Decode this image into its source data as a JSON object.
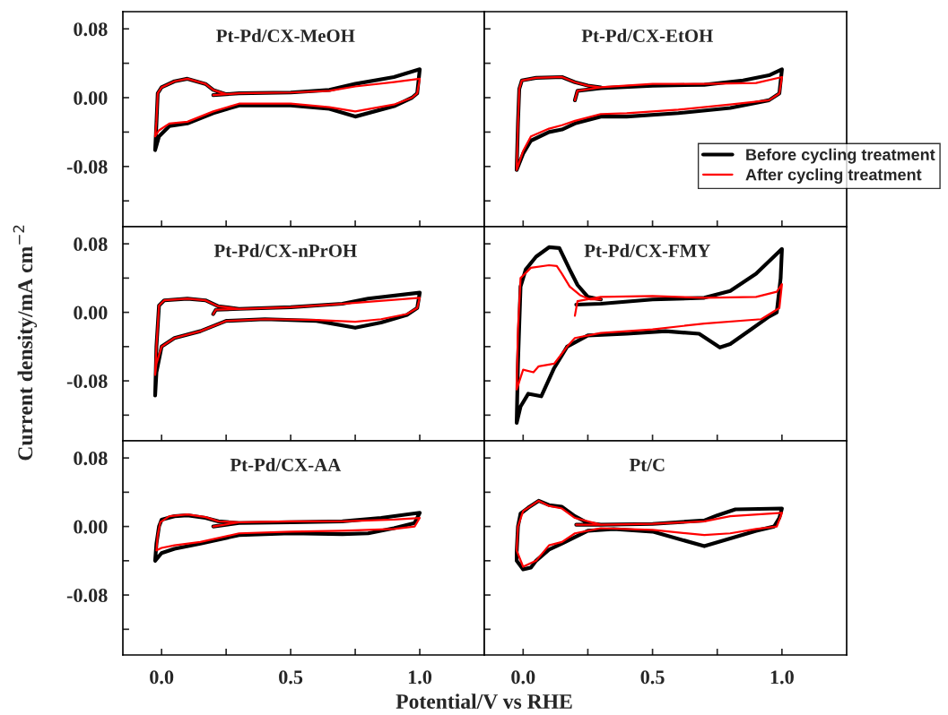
{
  "chart_data": [
    {
      "type": "line",
      "title": "Pt-Pd/CX-MeOH",
      "xlim": [
        -0.15,
        1.25
      ],
      "ylim": [
        -0.15,
        0.1
      ],
      "xticks": [
        {
          "value": 0.0,
          "label": null
        },
        {
          "value": 0.25,
          "label": null
        },
        {
          "value": 0.5,
          "label": null
        },
        {
          "value": 0.75,
          "label": null
        },
        {
          "value": 1.0,
          "label": null
        }
      ],
      "yticks": [
        {
          "value": 0.08,
          "label": "0.08"
        },
        {
          "value": 0.04,
          "label": null
        },
        {
          "value": 0.0,
          "label": "0.00"
        },
        {
          "value": -0.04,
          "label": null
        },
        {
          "value": -0.08,
          "label": "-0.08"
        },
        {
          "value": -0.12,
          "label": null
        }
      ],
      "tick_labels": "y",
      "line_style": "solid",
      "series": [
        {
          "color": "#000000",
          "x": [
            0.2,
            0.3,
            0.5,
            0.65,
            0.75,
            0.9,
            1.0,
            0.99,
            0.97,
            0.9,
            0.75,
            0.65,
            0.5,
            0.3,
            0.2,
            0.1,
            0.03,
            -0.01,
            -0.025,
            -0.02,
            -0.015,
            0.0,
            0.05,
            0.1,
            0.17,
            0.2,
            0.25
          ],
          "values": [
            0.003,
            0.005,
            0.006,
            0.009,
            0.016,
            0.024,
            0.033,
            0.005,
            0.0,
            -0.01,
            -0.022,
            -0.013,
            -0.009,
            -0.009,
            -0.018,
            -0.03,
            -0.033,
            -0.045,
            -0.061,
            -0.03,
            0.005,
            0.012,
            0.019,
            0.022,
            0.016,
            0.009,
            0.004
          ]
        },
        {
          "color": "#ff0000",
          "x": [
            0.2,
            0.3,
            0.5,
            0.65,
            0.75,
            0.9,
            1.0,
            0.99,
            0.97,
            0.9,
            0.75,
            0.65,
            0.5,
            0.3,
            0.2,
            0.1,
            0.03,
            -0.01,
            -0.025,
            -0.02,
            -0.015,
            0.0,
            0.05,
            0.1,
            0.17,
            0.2,
            0.25
          ],
          "values": [
            0.003,
            0.005,
            0.006,
            0.008,
            0.013,
            0.018,
            0.022,
            0.005,
            0.0,
            -0.008,
            -0.016,
            -0.011,
            -0.007,
            -0.007,
            -0.016,
            -0.028,
            -0.03,
            -0.038,
            -0.045,
            -0.028,
            0.005,
            0.012,
            0.019,
            0.022,
            0.016,
            0.009,
            0.004
          ]
        }
      ]
    },
    {
      "type": "line",
      "title": "Pt-Pd/CX-EtOH",
      "xlim": [
        -0.15,
        1.25
      ],
      "ylim": [
        -0.15,
        0.1
      ],
      "xticks": [
        {
          "value": 0.0,
          "label": null
        },
        {
          "value": 0.25,
          "label": null
        },
        {
          "value": 0.5,
          "label": null
        },
        {
          "value": 0.75,
          "label": null
        },
        {
          "value": 1.0,
          "label": null
        }
      ],
      "yticks": [
        {
          "value": 0.08,
          "label": null
        },
        {
          "value": 0.04,
          "label": null
        },
        {
          "value": 0.0,
          "label": null
        },
        {
          "value": -0.04,
          "label": null
        },
        {
          "value": -0.08,
          "label": null
        },
        {
          "value": -0.12,
          "label": null
        }
      ],
      "tick_labels": false,
      "line_style": "solid",
      "legend": "bottom right",
      "series": [
        {
          "name": "Before cycling treatment",
          "color": "#000000",
          "x": [
            0.2,
            0.21,
            0.3,
            0.5,
            0.7,
            0.85,
            0.95,
            1.0,
            0.99,
            0.95,
            0.8,
            0.6,
            0.4,
            0.3,
            0.2,
            0.15,
            0.1,
            0.03,
            0.0,
            -0.025,
            -0.02,
            -0.015,
            -0.005,
            0.05,
            0.15,
            0.2,
            0.25,
            0.3
          ],
          "values": [
            -0.003,
            0.008,
            0.011,
            0.014,
            0.015,
            0.02,
            0.026,
            0.033,
            0.005,
            -0.003,
            -0.012,
            -0.018,
            -0.022,
            -0.022,
            -0.03,
            -0.037,
            -0.04,
            -0.05,
            -0.065,
            -0.084,
            -0.03,
            0.01,
            0.02,
            0.023,
            0.024,
            0.018,
            0.014,
            0.012
          ]
        },
        {
          "name": "After cycling treatment",
          "color": "#ff0000",
          "x": [
            0.2,
            0.21,
            0.3,
            0.5,
            0.7,
            0.9,
            1.0,
            0.99,
            0.95,
            0.8,
            0.6,
            0.4,
            0.3,
            0.2,
            0.15,
            0.1,
            0.03,
            0.0,
            -0.025,
            -0.02,
            -0.015,
            -0.005,
            0.05,
            0.15,
            0.2,
            0.25,
            0.3
          ],
          "values": [
            -0.003,
            0.008,
            0.012,
            0.016,
            0.016,
            0.017,
            0.024,
            0.005,
            -0.003,
            -0.008,
            -0.014,
            -0.018,
            -0.019,
            -0.027,
            -0.032,
            -0.036,
            -0.045,
            -0.062,
            -0.084,
            -0.03,
            0.01,
            0.02,
            0.023,
            0.024,
            0.018,
            0.014,
            0.012
          ]
        }
      ]
    },
    {
      "type": "line",
      "title": "Pt-Pd/CX-nPrOH",
      "ylabel": "Current density/mA cm$^{−2}$",
      "xlim": [
        -0.15,
        1.25
      ],
      "ylim": [
        -0.15,
        0.1
      ],
      "xticks": [
        {
          "value": 0.0,
          "label": null
        },
        {
          "value": 0.25,
          "label": null
        },
        {
          "value": 0.5,
          "label": null
        },
        {
          "value": 0.75,
          "label": null
        },
        {
          "value": 1.0,
          "label": null
        }
      ],
      "yticks": [
        {
          "value": 0.08,
          "label": "0.08"
        },
        {
          "value": 0.04,
          "label": null
        },
        {
          "value": 0.0,
          "label": "0.00"
        },
        {
          "value": -0.04,
          "label": null
        },
        {
          "value": -0.08,
          "label": "-0.08"
        },
        {
          "value": -0.12,
          "label": null
        }
      ],
      "tick_labels": "y",
      "line_style": "solid",
      "series": [
        {
          "color": "#000000",
          "x": [
            0.2,
            0.21,
            0.3,
            0.5,
            0.7,
            0.8,
            1.0,
            0.99,
            0.95,
            0.85,
            0.75,
            0.6,
            0.4,
            0.25,
            0.15,
            0.05,
            0.0,
            -0.02,
            -0.025,
            -0.02,
            -0.01,
            0.01,
            0.1,
            0.17,
            0.22,
            0.3
          ],
          "values": [
            -0.002,
            0.003,
            0.004,
            0.006,
            0.01,
            0.016,
            0.023,
            0.005,
            -0.003,
            -0.012,
            -0.018,
            -0.01,
            -0.008,
            -0.01,
            -0.022,
            -0.03,
            -0.04,
            -0.07,
            -0.097,
            -0.04,
            0.008,
            0.014,
            0.016,
            0.014,
            0.007,
            0.004
          ]
        },
        {
          "color": "#ff0000",
          "x": [
            0.2,
            0.21,
            0.3,
            0.5,
            0.7,
            1.0,
            0.99,
            0.95,
            0.85,
            0.75,
            0.6,
            0.4,
            0.25,
            0.15,
            0.05,
            0.0,
            -0.02,
            -0.025,
            -0.02,
            -0.01,
            0.01,
            0.1,
            0.17,
            0.22,
            0.3
          ],
          "values": [
            -0.002,
            0.003,
            0.004,
            0.006,
            0.01,
            0.017,
            0.005,
            -0.002,
            -0.008,
            -0.011,
            -0.009,
            -0.008,
            -0.01,
            -0.022,
            -0.03,
            -0.04,
            -0.06,
            -0.073,
            -0.04,
            0.008,
            0.014,
            0.016,
            0.014,
            0.007,
            0.004
          ]
        }
      ]
    },
    {
      "type": "line",
      "title": "Pt-Pd/CX-FMY",
      "xlim": [
        -0.15,
        1.25
      ],
      "ylim": [
        -0.15,
        0.1
      ],
      "xticks": [
        {
          "value": 0.0,
          "label": null
        },
        {
          "value": 0.25,
          "label": null
        },
        {
          "value": 0.5,
          "label": null
        },
        {
          "value": 0.75,
          "label": null
        },
        {
          "value": 1.0,
          "label": null
        }
      ],
      "yticks": [
        {
          "value": 0.08,
          "label": null
        },
        {
          "value": 0.04,
          "label": null
        },
        {
          "value": 0.0,
          "label": null
        },
        {
          "value": -0.04,
          "label": null
        },
        {
          "value": -0.08,
          "label": null
        },
        {
          "value": -0.12,
          "label": null
        }
      ],
      "tick_labels": false,
      "line_style": "solid",
      "series": [
        {
          "color": "#000000",
          "x": [
            0.205,
            0.3,
            0.5,
            0.7,
            0.8,
            0.9,
            1.0,
            0.995,
            0.98,
            0.95,
            0.88,
            0.8,
            0.76,
            0.68,
            0.55,
            0.4,
            0.25,
            0.17,
            0.12,
            0.07,
            0.02,
            -0.01,
            -0.025,
            -0.02,
            -0.01,
            0.01,
            0.05,
            0.1,
            0.14,
            0.18,
            0.21,
            0.25,
            0.3
          ],
          "values": [
            0.009,
            0.01,
            0.015,
            0.017,
            0.025,
            0.045,
            0.074,
            0.04,
            0.0,
            -0.005,
            -0.02,
            -0.037,
            -0.041,
            -0.025,
            -0.022,
            -0.025,
            -0.027,
            -0.04,
            -0.065,
            -0.098,
            -0.095,
            -0.11,
            -0.129,
            -0.06,
            0.03,
            0.05,
            0.065,
            0.076,
            0.075,
            0.05,
            0.032,
            0.018,
            0.015
          ]
        },
        {
          "color": "#ff0000",
          "x": [
            0.2,
            0.21,
            0.3,
            0.5,
            0.7,
            0.9,
            0.98,
            1.0,
            0.99,
            0.92,
            0.7,
            0.5,
            0.3,
            0.2,
            0.17,
            0.12,
            0.06,
            0.04,
            0.0,
            -0.025,
            -0.02,
            -0.01,
            0.03,
            0.1,
            0.13,
            0.15,
            0.18,
            0.22,
            0.26,
            0.3
          ],
          "values": [
            -0.004,
            0.013,
            0.018,
            0.019,
            0.017,
            0.018,
            0.024,
            0.033,
            0.005,
            -0.008,
            -0.013,
            -0.02,
            -0.024,
            -0.03,
            -0.04,
            -0.06,
            -0.063,
            -0.07,
            -0.067,
            -0.09,
            -0.02,
            0.04,
            0.052,
            0.055,
            0.054,
            0.045,
            0.03,
            0.02,
            0.015,
            0.015
          ]
        }
      ]
    },
    {
      "type": "line",
      "title": "Pt-Pd/CX-AA",
      "xlabel": "Potential/V vs RHE",
      "xlim": [
        -0.15,
        1.25
      ],
      "ylim": [
        -0.15,
        0.1
      ],
      "xticks": [
        {
          "value": 0.0,
          "label": "0.0"
        },
        {
          "value": 0.25,
          "label": null
        },
        0.5,
        {
          "value": 0.75,
          "label": null
        },
        {
          "value": 1.0,
          "label": "1.0"
        }
      ],
      "yticks": [
        {
          "value": 0.08,
          "label": "0.08"
        },
        {
          "value": 0.04,
          "label": null
        },
        {
          "value": 0.0,
          "label": "0.00"
        },
        {
          "value": -0.04,
          "label": null
        },
        {
          "value": -0.08,
          "label": "-0.08"
        },
        {
          "value": -0.12,
          "label": null
        }
      ],
      "line_style": "solid",
      "series": [
        {
          "color": "#000000",
          "x": [
            0.2,
            0.3,
            0.5,
            0.7,
            0.85,
            1.0,
            0.98,
            0.9,
            0.8,
            0.7,
            0.5,
            0.3,
            0.15,
            0.05,
            0.0,
            -0.025,
            -0.02,
            -0.01,
            0.0,
            0.05,
            0.1,
            0.17,
            0.22,
            0.3
          ],
          "values": [
            0.0,
            0.004,
            0.005,
            0.006,
            0.01,
            0.016,
            0.004,
            -0.002,
            -0.008,
            -0.009,
            -0.008,
            -0.01,
            -0.02,
            -0.026,
            -0.031,
            -0.04,
            -0.02,
            0.0,
            0.008,
            0.012,
            0.013,
            0.01,
            0.006,
            0.004
          ]
        },
        {
          "color": "#ff0000",
          "x": [
            0.2,
            0.3,
            0.5,
            0.7,
            0.9,
            1.0,
            0.98,
            0.9,
            0.7,
            0.5,
            0.3,
            0.15,
            0.05,
            0.0,
            -0.02,
            -0.015,
            -0.005,
            0.03,
            0.1,
            0.17,
            0.22,
            0.3
          ],
          "values": [
            0.0,
            0.005,
            0.006,
            0.006,
            0.008,
            0.01,
            0.0,
            -0.003,
            -0.005,
            -0.006,
            -0.008,
            -0.018,
            -0.022,
            -0.025,
            -0.028,
            -0.01,
            0.005,
            0.012,
            0.014,
            0.011,
            0.006,
            0.005
          ]
        }
      ]
    },
    {
      "type": "line",
      "title": "Pt/C",
      "xlim": [
        -0.15,
        1.25
      ],
      "ylim": [
        -0.15,
        0.1
      ],
      "xticks": [
        {
          "value": 0.0,
          "label": "0.0"
        },
        {
          "value": 0.25,
          "label": null
        },
        0.5,
        {
          "value": 0.75,
          "label": null
        },
        {
          "value": 1.0,
          "label": "1.0"
        }
      ],
      "yticks": [
        {
          "value": 0.08,
          "label": null
        },
        {
          "value": 0.04,
          "label": null
        },
        {
          "value": 0.0,
          "label": null
        },
        {
          "value": -0.04,
          "label": null
        },
        {
          "value": -0.08,
          "label": null
        },
        {
          "value": -0.12,
          "label": null
        }
      ],
      "tick_labels": "x",
      "line_style": "solid",
      "series": [
        {
          "color": "#000000",
          "x": [
            0.205,
            0.3,
            0.5,
            0.7,
            0.75,
            0.82,
            1.0,
            0.99,
            0.97,
            0.9,
            0.8,
            0.7,
            0.5,
            0.35,
            0.25,
            0.15,
            0.1,
            0.05,
            0.03,
            0.0,
            -0.025,
            -0.025,
            -0.02,
            -0.01,
            0.02,
            0.06,
            0.1,
            0.15,
            0.2,
            0.25,
            0.3
          ],
          "values": [
            0.002,
            0.002,
            0.003,
            0.007,
            0.013,
            0.02,
            0.021,
            0.01,
            0.0,
            -0.005,
            -0.014,
            -0.023,
            -0.006,
            -0.003,
            -0.005,
            -0.02,
            -0.027,
            -0.04,
            -0.048,
            -0.05,
            -0.04,
            -0.03,
            0.0,
            0.015,
            0.022,
            0.03,
            0.025,
            0.023,
            0.012,
            0.004,
            0.002
          ]
        },
        {
          "color": "#ff0000",
          "x": [
            0.205,
            0.3,
            0.5,
            0.7,
            0.8,
            1.0,
            0.98,
            0.9,
            0.8,
            0.7,
            0.5,
            0.3,
            0.2,
            0.15,
            0.1,
            0.05,
            0.0,
            -0.025,
            -0.02,
            0.0,
            0.06,
            0.1,
            0.15,
            0.2,
            0.3
          ],
          "values": [
            0.002,
            0.002,
            0.003,
            0.006,
            0.012,
            0.016,
            0.0,
            -0.003,
            -0.008,
            -0.01,
            -0.004,
            -0.002,
            -0.008,
            -0.018,
            -0.022,
            -0.04,
            -0.047,
            -0.028,
            0.0,
            0.018,
            0.03,
            0.024,
            0.021,
            0.01,
            0.002
          ]
        }
      ]
    }
  ]
}
